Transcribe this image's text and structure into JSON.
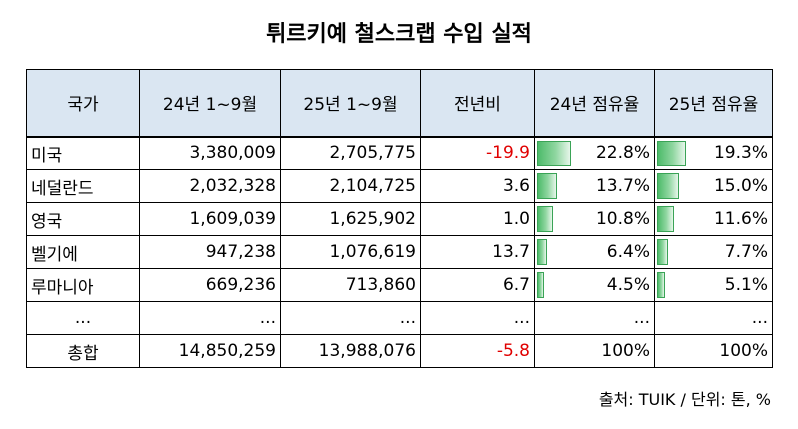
{
  "title": "튀르키예 철스크랩 수입 실적",
  "headers": [
    "국가",
    "24년 1~9월",
    "25년 1~9월",
    "전년비",
    "24년 점유율",
    "25년 점유율"
  ],
  "rows": [
    {
      "country": "미국",
      "y24": "3,380,009",
      "y25": "2,705,775",
      "yoy": "-19.9",
      "share24": "22.8%",
      "share25": "19.3%",
      "share24_value": 22.8,
      "share25_value": 19.3,
      "negative": true
    },
    {
      "country": "네덜란드",
      "y24": "2,032,328",
      "y25": "2,104,725",
      "yoy": "3.6",
      "share24": "13.7%",
      "share25": "15.0%",
      "share24_value": 13.7,
      "share25_value": 15.0,
      "negative": false
    },
    {
      "country": "영국",
      "y24": "1,609,039",
      "y25": "1,625,902",
      "yoy": "1.0",
      "share24": "10.8%",
      "share25": "11.6%",
      "share24_value": 10.8,
      "share25_value": 11.6,
      "negative": false
    },
    {
      "country": "벨기에",
      "y24": "947,238",
      "y25": "1,076,619",
      "yoy": "13.7",
      "share24": "6.4%",
      "share25": "7.7%",
      "share24_value": 6.4,
      "share25_value": 7.7,
      "negative": false
    },
    {
      "country": "루마니아",
      "y24": "669,236",
      "y25": "713,860",
      "yoy": "6.7",
      "share24": "4.5%",
      "share25": "5.1%",
      "share24_value": 4.5,
      "share25_value": 5.1,
      "negative": false
    }
  ],
  "ellipsis": "...",
  "total": {
    "label": "총합",
    "y24": "14,850,259",
    "y25": "13,988,076",
    "yoy": "-5.8",
    "share24": "100%",
    "share25": "100%"
  },
  "source": "출처: TUIK / 단위: 톤, %",
  "colors": {
    "header_bg": "#dae6f2",
    "negative": "#e00000",
    "bar": "#4dbb6a"
  }
}
